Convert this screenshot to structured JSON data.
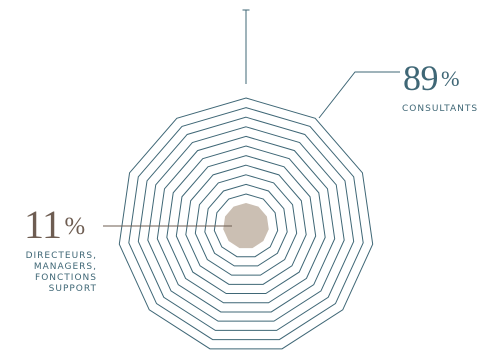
{
  "chart_data": {
    "type": "pie",
    "title": "",
    "categories": [
      "CONSULTANTS",
      "DIRECTEURS, MANAGERS, FONCTIONS SUPPORT"
    ],
    "values": [
      89,
      11
    ],
    "unit": "%",
    "labels": [
      {
        "value": "89",
        "symbol": "%",
        "caption_lines": [
          "CONSULTANTS"
        ]
      },
      {
        "value": "11",
        "symbol": "%",
        "caption_lines": [
          "DIRECTEURS,",
          "MANAGERS,",
          "FONCTIONS",
          "SUPPORT"
        ]
      }
    ],
    "shape": "concentric-hendecagon",
    "ring_count": 11,
    "legend": "none",
    "grid": false
  },
  "colors": {
    "consultants": "#3f6776",
    "directors_text": "#6e5d52",
    "directors_fill": "#cbbfb3",
    "ring_stroke": "#3f6776",
    "background": "#ffffff"
  }
}
